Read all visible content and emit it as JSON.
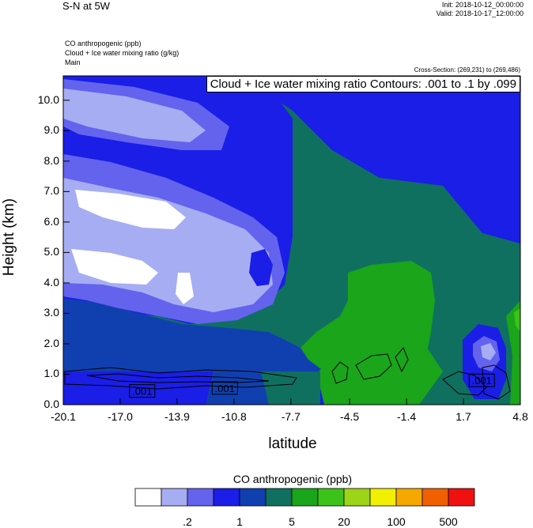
{
  "header": {
    "title": "S-N at 5W",
    "init": "Init: 2018-10-12_00:00:00",
    "valid": "Valid: 2018-10-17_12:00:00",
    "fields": [
      "CO anthropogenic   (ppb)",
      "Cloud + Ice water mixing ratio   (g/kg)",
      "Main"
    ],
    "cross_section": "Cross-Section: (269,231) to (269,486)",
    "contour_info": "Cloud + Ice water mixing ratio Contours: .001 to .1 by .099"
  },
  "colors": {
    "levels": [
      "#ffffff",
      "#a6adf3",
      "#6363ee",
      "#1a1ee6",
      "#1040b0",
      "#0f7060",
      "#1aa51a",
      "#3cc218",
      "#9cd418",
      "#f0f000",
      "#f5a800",
      "#f06000",
      "#f01010"
    ],
    "contour": "#000000"
  },
  "chart_data": {
    "type": "heatmap",
    "title": "",
    "xlabel": "latitude",
    "ylabel": "Height (km)",
    "x_ticks": [
      "-20.1",
      "-17.0",
      "-13.9",
      "-10.8",
      "-7.7",
      "-4.5",
      "-1.4",
      "1.7",
      "4.8"
    ],
    "y_ticks": [
      "0.0",
      "1.0",
      "2.0",
      "3.0",
      "4.0",
      "5.0",
      "6.0",
      "7.0",
      "8.0",
      "9.0",
      "10.0"
    ],
    "xlim": [
      -20.1,
      4.8
    ],
    "ylim": [
      0.0,
      10.8
    ],
    "colorbar": {
      "title": "CO anthropogenic  (ppb)",
      "labels": [
        ".2",
        "1",
        "5",
        "20",
        "100",
        "500"
      ]
    },
    "contour_labels": [
      {
        "text": ".001",
        "lat": -15.8,
        "height": 0.45
      },
      {
        "text": ".001",
        "lat": -11.3,
        "height": 0.55
      },
      {
        "text": ".001",
        "lat": 2.7,
        "height": 0.8
      }
    ]
  }
}
